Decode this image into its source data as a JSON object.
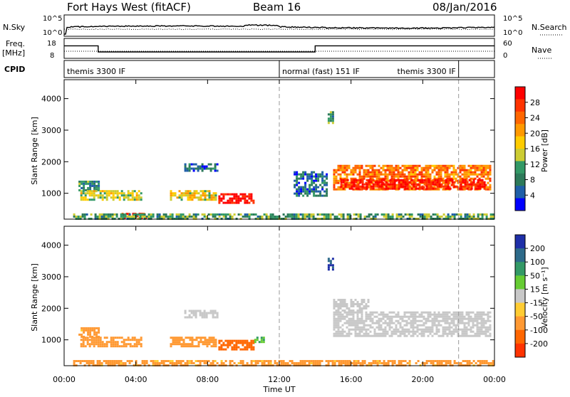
{
  "header": {
    "station": "Fort Hays West (fitACF)",
    "beam": "Beam 16",
    "date": "08/Jan/2016"
  },
  "strips": {
    "nsky": {
      "left_label": "N.Sky",
      "right_label": "N.Search",
      "left_ticks": [
        "10^5",
        "10^0"
      ],
      "right_ticks": [
        "10^5",
        "10^0"
      ]
    },
    "freq": {
      "left_label_1": "Freq.",
      "left_label_2": "[MHz]",
      "left_ticks": [
        "18",
        "8"
      ],
      "right_label": "Nave",
      "right_ticks": [
        "60",
        "0"
      ],
      "freq_steps": [
        {
          "start_h": 0.0,
          "end_h": 1.9,
          "mhz": 14.5
        },
        {
          "start_h": 1.9,
          "end_h": 14.0,
          "mhz": 10.9
        },
        {
          "start_h": 14.0,
          "end_h": 24.0,
          "mhz": 14.5
        }
      ]
    },
    "cpid": {
      "label": "CPID",
      "segments": [
        {
          "text": "themis 3300 IF",
          "start_h": 0.0
        },
        {
          "text": "normal (fast) 151 IF",
          "start_h": 12.0
        },
        {
          "text": "themis 3300 IF",
          "start_h": 22.0
        }
      ]
    }
  },
  "power_colorbar": {
    "label": "Power [dB]",
    "ticks": [
      "28",
      "24",
      "20",
      "16",
      "12",
      "8",
      "4"
    ],
    "colors": [
      "#ff0000",
      "#ff3300",
      "#ff6600",
      "#ff9900",
      "#ffcc00",
      "#cccc33",
      "#339966",
      "#2d7a5a",
      "#1f5fa8",
      "#0000ff"
    ]
  },
  "velocity_colorbar": {
    "label": "Velocity [m s⁻¹]",
    "ticks": [
      "200",
      "100",
      "50",
      "15",
      "-15",
      "-50",
      "-100",
      "-200"
    ],
    "colors": [
      "#1e2fa8",
      "#2d6a8a",
      "#339966",
      "#66cc33",
      "#c8c8c8",
      "#ffcc33",
      "#ff9933",
      "#ff6600",
      "#ff3300"
    ]
  },
  "axes": {
    "ylabel": "Slant Range [km]",
    "xlabel": "Time UT",
    "yticks": [
      "1000",
      "2000",
      "3000",
      "4000"
    ],
    "xticks": [
      "00:00",
      "04:00",
      "08:00",
      "12:00",
      "16:00",
      "20:00",
      "00:00"
    ]
  },
  "chart_data": {
    "type": "heatmap",
    "x_unit": "hours UT",
    "xlim": [
      0,
      24
    ],
    "ylim": [
      180,
      4600
    ],
    "y_unit": "km",
    "dashed_lines_h": [
      12,
      22
    ],
    "power_regions": [
      {
        "x0": 0.8,
        "x1": 1.9,
        "y0": 1100,
        "y1": 1400,
        "power": 8
      },
      {
        "x0": 0.9,
        "x1": 4.3,
        "y0": 780,
        "y1": 1100,
        "power": 14
      },
      {
        "x0": 5.9,
        "x1": 8.5,
        "y0": 800,
        "y1": 1100,
        "power": 16
      },
      {
        "x0": 8.6,
        "x1": 10.6,
        "y0": 720,
        "y1": 1000,
        "power": 28
      },
      {
        "x0": 6.7,
        "x1": 8.5,
        "y0": 1700,
        "y1": 1950,
        "power": 6
      },
      {
        "x0": 3.2,
        "x1": 4.6,
        "y0": 220,
        "y1": 380,
        "power": 26
      },
      {
        "x0": 0.5,
        "x1": 23.9,
        "y0": 180,
        "y1": 360,
        "power": 10
      },
      {
        "x0": 15.0,
        "x1": 23.8,
        "y0": 1150,
        "y1": 1900,
        "power": 22
      },
      {
        "x0": 15.4,
        "x1": 23.4,
        "y0": 1150,
        "y1": 1450,
        "power": 28
      },
      {
        "x0": 14.7,
        "x1": 15.0,
        "y0": 3200,
        "y1": 3600,
        "power": 10
      },
      {
        "x0": 12.8,
        "x1": 14.6,
        "y0": 900,
        "y1": 1700,
        "power": 6
      }
    ],
    "velocity_regions": [
      {
        "x0": 0.8,
        "x1": 1.9,
        "y0": 1100,
        "y1": 1400,
        "velocity": -40
      },
      {
        "x0": 0.9,
        "x1": 4.3,
        "y0": 780,
        "y1": 1100,
        "velocity": -60
      },
      {
        "x0": 5.9,
        "x1": 8.5,
        "y0": 800,
        "y1": 1100,
        "velocity": -60
      },
      {
        "x0": 8.6,
        "x1": 10.6,
        "y0": 720,
        "y1": 1000,
        "velocity": -100
      },
      {
        "x0": 10.6,
        "x1": 11.1,
        "y0": 900,
        "y1": 1100,
        "velocity": 30
      },
      {
        "x0": 6.7,
        "x1": 8.5,
        "y0": 1700,
        "y1": 1950,
        "velocity": 0
      },
      {
        "x0": 0.5,
        "x1": 23.9,
        "y0": 180,
        "y1": 360,
        "velocity": -40
      },
      {
        "x0": 15.0,
        "x1": 23.8,
        "y0": 1150,
        "y1": 1900,
        "velocity": 0
      },
      {
        "x0": 15.0,
        "x1": 17.0,
        "y0": 1900,
        "y1": 2300,
        "velocity": 0
      },
      {
        "x0": 14.7,
        "x1": 15.0,
        "y0": 3200,
        "y1": 3600,
        "velocity": 150
      }
    ]
  }
}
